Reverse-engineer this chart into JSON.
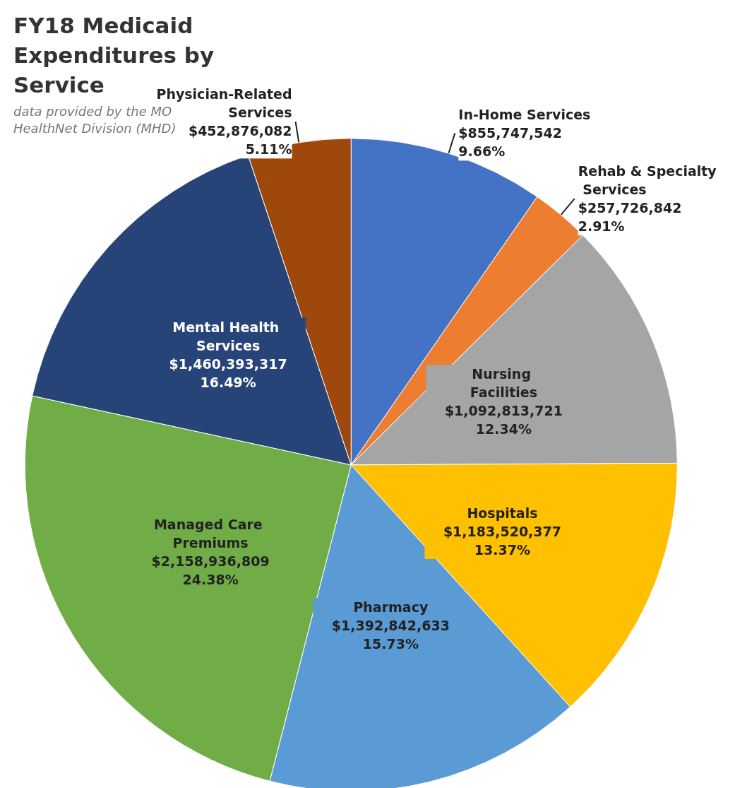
{
  "chart_data": {
    "type": "pie",
    "title": "FY18 Medicaid Expenditures by Service",
    "subtitle": "data provided by the MO HealthNet Division (MHD)",
    "categories": [
      "In-Home Services",
      "Rehab & Specialty Services",
      "Nursing Facilities",
      "Hospitals",
      "Pharmacy",
      "Managed Care Premiums",
      "Mental Health Services",
      "Physician-Related Services"
    ],
    "values": [
      855747542,
      257726842,
      1092813721,
      1183520377,
      1392842633,
      2158936809,
      1460393317,
      452876082
    ],
    "value_labels": [
      "$855,747,542\n9.66%",
      "$257,726,842\n2.91%",
      "$1,092,813,721\n12.34%",
      "$1,183,520,377\n13.37%",
      "$1,392,842,633\n15.73%",
      "$2,158,936,809\n24.38%",
      "$1,460,393,317\n16.49%",
      "$452,876,082\n5.11%"
    ],
    "colors": [
      "#4472c4",
      "#ed7d31",
      "#a5a5a5",
      "#ffc000",
      "#5b9bd5",
      "#70ad47",
      "#264478",
      "#9e480e"
    ],
    "legend": false
  }
}
